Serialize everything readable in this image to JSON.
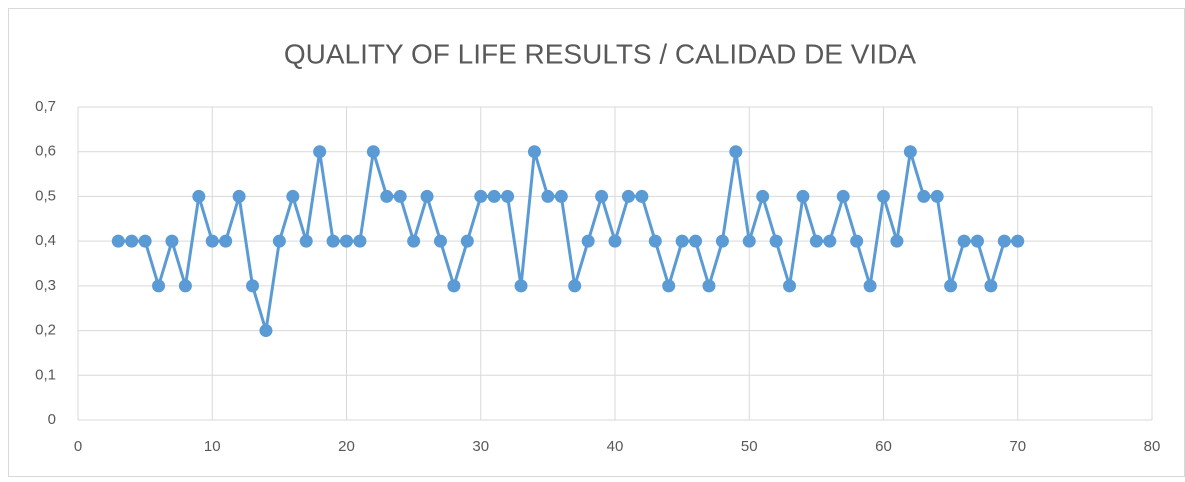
{
  "chart_data": {
    "type": "line",
    "title": "QUALITY OF LIFE RESULTS / CALIDAD DE VIDA",
    "x": [
      3,
      4,
      5,
      6,
      7,
      8,
      9,
      10,
      11,
      12,
      13,
      14,
      15,
      16,
      17,
      18,
      19,
      20,
      21,
      22,
      23,
      24,
      25,
      26,
      27,
      28,
      29,
      30,
      31,
      32,
      33,
      34,
      35,
      36,
      37,
      38,
      39,
      40,
      41,
      42,
      43,
      44,
      45,
      46,
      47,
      48,
      49,
      50,
      51,
      52,
      53,
      54,
      55,
      56,
      57,
      58,
      59,
      60,
      61,
      62,
      63,
      64,
      65,
      66,
      67,
      68,
      69,
      70
    ],
    "series": [
      {
        "color": "#5b9bd5",
        "values": [
          0.4,
          0.4,
          0.4,
          0.3,
          0.4,
          0.3,
          0.5,
          0.4,
          0.4,
          0.5,
          0.3,
          0.2,
          0.4,
          0.5,
          0.4,
          0.6,
          0.4,
          0.4,
          0.4,
          0.6,
          0.5,
          0.5,
          0.4,
          0.5,
          0.4,
          0.3,
          0.4,
          0.5,
          0.5,
          0.5,
          0.3,
          0.6,
          0.5,
          0.5,
          0.3,
          0.4,
          0.5,
          0.4,
          0.5,
          0.5,
          0.4,
          0.3,
          0.4,
          0.4,
          0.3,
          0.4,
          0.6,
          0.4,
          0.5,
          0.4,
          0.3,
          0.5,
          0.4,
          0.4,
          0.5,
          0.4,
          0.3,
          0.5,
          0.4,
          0.6,
          0.5,
          0.5,
          0.3,
          0.4,
          0.4,
          0.3,
          0.4,
          0.4
        ]
      }
    ],
    "xlim": [
      0,
      80
    ],
    "xticks": [
      0,
      10,
      20,
      30,
      40,
      50,
      60,
      70,
      80
    ],
    "ylim": [
      0,
      0.7
    ],
    "yticks": [
      0,
      {
        "value": 0.1,
        "label": "0,1"
      },
      {
        "value": 0.2,
        "label": "0,2"
      },
      {
        "value": 0.3,
        "label": "0,3"
      },
      {
        "value": 0.4,
        "label": "0,4"
      },
      {
        "value": 0.5,
        "label": "0,5"
      },
      {
        "value": 0.6,
        "label": "0,6"
      },
      {
        "value": 0.7,
        "label": "0,7"
      }
    ],
    "grid": true
  }
}
